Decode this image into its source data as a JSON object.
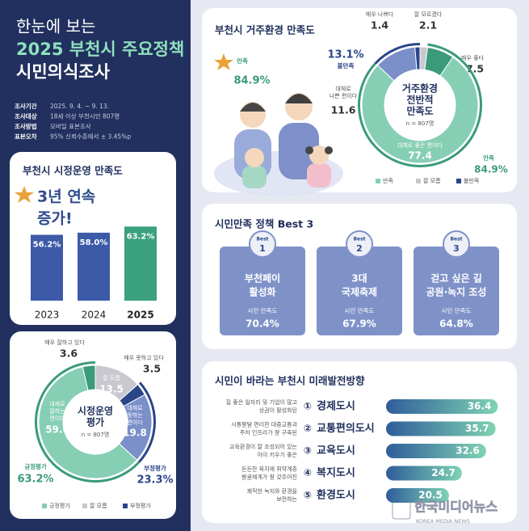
{
  "header": {
    "intro": "한눈에 보는",
    "title": "2025 부천시 주요정책",
    "subtitle": "시민의식조사",
    "info": [
      {
        "label": "조사기간",
        "value": "2025. 9. 4. ~ 9. 13."
      },
      {
        "label": "조사대상",
        "value": "18세 이상 부천시민 807명"
      },
      {
        "label": "조사방법",
        "value": "모바일 표본조사"
      },
      {
        "label": "표본오차",
        "value": "95% 신뢰수준에서 ± 3.45%p"
      }
    ]
  },
  "operation": {
    "title": "부천시 시정운영 만족도",
    "headline": [
      "3년 연속",
      "증가!"
    ],
    "bars": {
      "categories": [
        "2023",
        "2024",
        "2025"
      ],
      "values": [
        56.2,
        58.0,
        63.2
      ],
      "value_labels": [
        "56.2%",
        "58.0%",
        "63.2%"
      ],
      "colors": [
        "#3d5aa8",
        "#3d5aa8",
        "#3aa07e"
      ]
    },
    "donut": {
      "center": [
        "시정운영",
        "평가"
      ],
      "note": "n = 807명",
      "slices": [
        {
          "name": [
            "잘 모름"
          ],
          "value": 13.5,
          "color": "#c8c9cf"
        },
        {
          "name": [
            "매우 못하고 있다"
          ],
          "value": 3.5,
          "color": "#2b4589"
        },
        {
          "name": [
            "대체로",
            "못하는",
            "편이다"
          ],
          "value": 19.8,
          "color": "#7b8fc9"
        },
        {
          "name": [
            "대체로",
            "잘하는",
            "편이다"
          ],
          "value": 59.6,
          "color": "#86cfb4"
        },
        {
          "name": [
            "매우 잘하고 있다"
          ],
          "value": 3.6,
          "color": "#3b9a7a"
        }
      ],
      "totals": [
        {
          "name": "부정평가",
          "value": 23.3,
          "value_label": "23.3%",
          "color": "#2b4589"
        },
        {
          "name": "긍정평가",
          "value": 63.2,
          "value_label": "63.2%",
          "color": "#3b9a7a"
        }
      ],
      "legend": [
        {
          "name": "긍정평가",
          "color": "#86cfb4"
        },
        {
          "name": "잘 모름",
          "color": "#c8c9cf"
        },
        {
          "name": "부정평가",
          "color": "#2b4589"
        }
      ]
    }
  },
  "residential": {
    "title": "부천시 거주환경 만족도",
    "donut": {
      "center": [
        "거주환경",
        "전반적",
        "만족도"
      ],
      "note": "n = 807명",
      "slices": [
        {
          "name": [
            "잘 모르겠다"
          ],
          "value": 2.1,
          "color": "#c8c9cf"
        },
        {
          "name": [
            "매우 좋다"
          ],
          "value": 7.5,
          "color": "#3b9a7a"
        },
        {
          "name": [
            "대체로 좋은 편이다"
          ],
          "value": 77.4,
          "color": "#86cfb4"
        },
        {
          "name": [
            "대체로",
            "나쁜 편이다"
          ],
          "value": 11.6,
          "color": "#7b8fc9"
        },
        {
          "name": [
            "매우 나쁘다"
          ],
          "value": 1.4,
          "color": "#2b4589"
        }
      ],
      "totals": [
        {
          "name": "만족",
          "value": 84.9,
          "value_label": "84.9%",
          "color": "#3b9a7a"
        },
        {
          "name": "불만족",
          "value": 13.1,
          "value_label": "13.1%",
          "color": "#2b4589"
        }
      ],
      "legend": [
        {
          "name": "만족",
          "color": "#86cfb4"
        },
        {
          "name": "잘 모름",
          "color": "#c8c9cf"
        },
        {
          "name": "불만족",
          "color": "#2b4589"
        }
      ]
    }
  },
  "best3": {
    "title": "시민만족 정책 Best 3",
    "items": [
      {
        "badge": "Best",
        "rank": "1",
        "name": [
          "부천페이",
          "활성화"
        ],
        "label": "시민 만족도",
        "value": "70.4%"
      },
      {
        "badge": "Best",
        "rank": "2",
        "name": [
          "3대",
          "국제축제"
        ],
        "label": "시민 만족도",
        "value": "67.9%"
      },
      {
        "badge": "Best",
        "rank": "3",
        "name": [
          "걷고 싶은 길",
          "공원·녹지 조성"
        ],
        "label": "시민 만족도",
        "value": "64.8%"
      }
    ]
  },
  "priorities": {
    "title": "시민이 바라는 부천시 미래발전방향",
    "items": [
      {
        "description": [
          "질 좋은 일자리 및 기업이 많고",
          "상권이 활성화된"
        ],
        "number": "①",
        "name": "경제도시",
        "value": 36.4
      },
      {
        "description": [
          "시통팔달 편리한 대중교통과",
          "주차 인프라가 잘 구축된"
        ],
        "number": "②",
        "name": "교통편의도시",
        "value": 35.7
      },
      {
        "description": [
          "교육환경이 잘 조성되어 있는",
          "아이 키우기 좋은"
        ],
        "number": "③",
        "name": "교육도시",
        "value": 32.6
      },
      {
        "description": [
          "든든한 복지에 취약계층",
          "발굴체계가 잘 갖추어진"
        ],
        "number": "④",
        "name": "복지도시",
        "value": 24.7
      },
      {
        "description": [
          "쾌적한 녹지와 환경을",
          "보전하는"
        ],
        "number": "⑤",
        "name": "환경도시",
        "value": 20.5
      }
    ]
  },
  "watermark": {
    "name": "한국미디어뉴스",
    "subtitle": "KOREA MEDIA NEWS"
  }
}
